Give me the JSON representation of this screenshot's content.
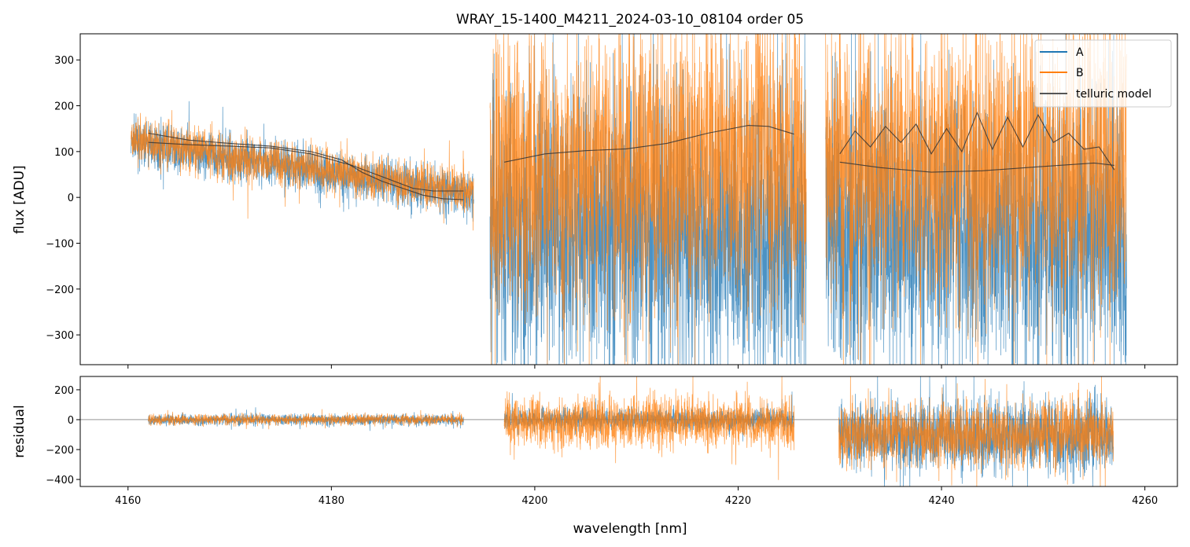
{
  "chart_data": {
    "type": "line",
    "title": "WRAY_15-1400_M4211_2024-03-10_08104  order 05",
    "xlabel": "wavelength [nm]",
    "xlim": [
      4155.3,
      4263.2
    ],
    "xticks": [
      4160,
      4180,
      4200,
      4220,
      4240,
      4260
    ],
    "legend": {
      "placement": "top-right",
      "entries": [
        "A",
        "B",
        "telluric model"
      ]
    },
    "colors": {
      "A": "#1f77b4",
      "B": "#ff7f0e",
      "model": "#333333"
    },
    "panels": [
      {
        "ylabel": "flux [ADU]",
        "ylim": [
          -365,
          357
        ],
        "yticks": [
          -300,
          -200,
          -100,
          0,
          100,
          200,
          300
        ],
        "segments": [
          {
            "x": [
              4160.3,
              4194.0
            ],
            "A": {
              "start": 120,
              "end": 5,
              "noise": 40
            },
            "B": {
              "start": 125,
              "end": 10,
              "noise": 40
            }
          },
          {
            "x": [
              4195.6,
              4226.7
            ],
            "A": {
              "start": -60,
              "end": -100,
              "noise": 260
            },
            "B": {
              "start": 60,
              "end": 80,
              "noise": 250
            }
          },
          {
            "x": [
              4228.6,
              4258.2
            ],
            "A": {
              "start": -60,
              "end": -80,
              "noise": 260
            },
            "B": {
              "start": 80,
              "end": 60,
              "noise": 250
            }
          }
        ],
        "model": [
          {
            "x": [
              4162,
              4166,
              4170,
              4174,
              4178,
              4181,
              4183,
              4185,
              4187,
              4189,
              4191,
              4193
            ],
            "y": [
              140,
              125,
              118,
              112,
              100,
              82,
              55,
              35,
              20,
              5,
              -3,
              -5
            ]
          },
          {
            "x": [
              4162,
              4166,
              4170,
              4174,
              4178,
              4182,
              4185,
              4188,
              4190,
              4193
            ],
            "y": [
              120,
              115,
              112,
              108,
              95,
              70,
              45,
              20,
              14,
              14
            ]
          },
          {
            "x": [
              4197,
              4201,
              4205,
              4209,
              4213,
              4217,
              4221,
              4223,
              4225.5
            ],
            "y": [
              77,
              95,
              102,
              106,
              118,
              140,
              157,
              155,
              138
            ]
          },
          {
            "x": [
              4230,
              4231.5,
              4233,
              4234.5,
              4236,
              4237.5,
              4239,
              4240.5,
              4242,
              4243.5,
              4245,
              4246.5,
              4248,
              4249.5,
              4251,
              4252.5,
              4254,
              4255.5,
              4257
            ],
            "y": [
              95,
              145,
              110,
              155,
              120,
              160,
              95,
              150,
              100,
              185,
              105,
              175,
              110,
              180,
              120,
              140,
              105,
              110,
              60
            ]
          },
          {
            "x": [
              4230,
              4234,
              4239,
              4244,
              4249,
              4255,
              4257
            ],
            "y": [
              77,
              65,
              55,
              58,
              66,
              75,
              70
            ]
          }
        ]
      },
      {
        "ylabel": "residual",
        "ylim": [
          -447,
          289
        ],
        "yticks": [
          -400,
          -200,
          0,
          200
        ],
        "segments": [
          {
            "x": [
              4162,
              4193
            ],
            "A": {
              "start": 0,
              "end": 0,
              "noise": 30
            },
            "B": {
              "start": 0,
              "end": 0,
              "noise": 30
            }
          },
          {
            "x": [
              4197,
              4225.5
            ],
            "A": {
              "start": 0,
              "end": 0,
              "noise": 60
            },
            "B": {
              "start": -10,
              "end": -20,
              "noise": 140
            }
          },
          {
            "x": [
              4229.9,
              4256.9
            ],
            "A": {
              "start": -110,
              "end": -110,
              "noise": 200
            },
            "B": {
              "start": -100,
              "end": -100,
              "noise": 180
            }
          }
        ]
      }
    ]
  }
}
